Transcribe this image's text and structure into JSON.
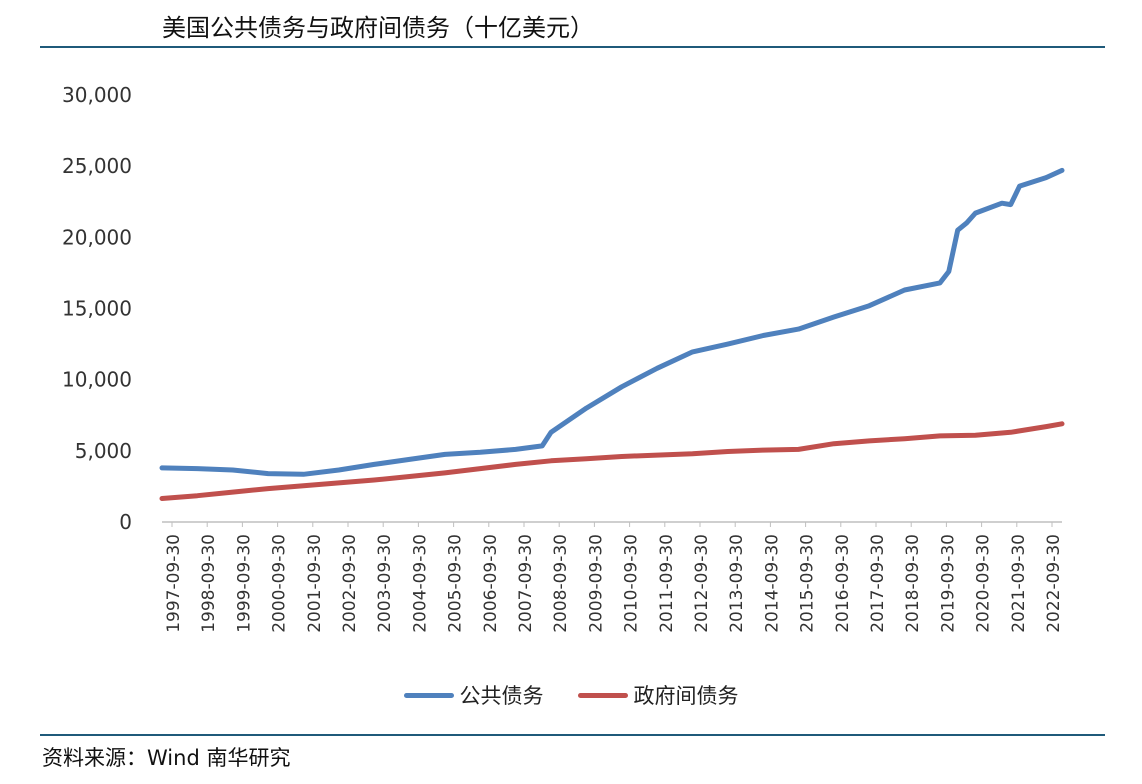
{
  "header": {
    "title": "美国公共债务与政府间债务（十亿美元）"
  },
  "footer": {
    "source": "资料来源：Wind 南华研究"
  },
  "chart_data": {
    "type": "line",
    "title": "美国公共债务与政府间债务（十亿美元）",
    "xlabel": "",
    "ylabel": "",
    "ylim": [
      0,
      30000
    ],
    "yticks": [
      "0",
      "5,000",
      "10,000",
      "15,000",
      "20,000",
      "25,000",
      "30,000"
    ],
    "xticks": [
      "1997-09-30",
      "1998-09-30",
      "1999-09-30",
      "2000-09-30",
      "2001-09-30",
      "2002-09-30",
      "2003-09-30",
      "2004-09-30",
      "2005-09-30",
      "2006-09-30",
      "2007-09-30",
      "2008-09-30",
      "2009-09-30",
      "2010-09-30",
      "2011-09-30",
      "2012-09-30",
      "2013-09-30",
      "2014-09-30",
      "2015-09-30",
      "2016-09-30",
      "2017-09-30",
      "2018-09-30",
      "2019-09-30",
      "2020-09-30",
      "2021-09-30",
      "2022-09-30"
    ],
    "xlim": [
      1997.75,
      2023.2
    ],
    "legend_position": "bottom",
    "grid": false,
    "series": [
      {
        "name": "公共债务",
        "color": "#4f81bd",
        "x": [
          1997.75,
          1998.75,
          1999.75,
          2000.75,
          2001.75,
          2002.75,
          2003.75,
          2004.75,
          2005.75,
          2006.75,
          2007.75,
          2008.5,
          2008.75,
          2009.75,
          2010.75,
          2011.75,
          2012.75,
          2013.75,
          2014.75,
          2015.75,
          2016.75,
          2017.75,
          2018.75,
          2019.75,
          2020.0,
          2020.25,
          2020.5,
          2020.75,
          2021.5,
          2021.75,
          2022.0,
          2022.75,
          2023.2
        ],
        "values": [
          3800,
          3750,
          3650,
          3400,
          3350,
          3650,
          4050,
          4400,
          4750,
          4900,
          5100,
          5350,
          6300,
          8000,
          9500,
          10800,
          11950,
          12500,
          13100,
          13550,
          14400,
          15200,
          16300,
          16800,
          17600,
          20500,
          21000,
          21700,
          22400,
          22300,
          23600,
          24200,
          24700
        ]
      },
      {
        "name": "政府间债务",
        "color": "#c0504d",
        "x": [
          1997.75,
          1998.75,
          1999.75,
          2000.75,
          2001.75,
          2002.75,
          2003.75,
          2004.75,
          2005.75,
          2006.75,
          2007.75,
          2008.75,
          2009.75,
          2010.75,
          2011.75,
          2012.75,
          2013.75,
          2014.75,
          2015.75,
          2016.75,
          2017.75,
          2018.75,
          2019.75,
          2020.75,
          2021.75,
          2022.75,
          2023.2
        ],
        "values": [
          1650,
          1850,
          2100,
          2350,
          2550,
          2750,
          2950,
          3200,
          3450,
          3750,
          4050,
          4300,
          4450,
          4600,
          4700,
          4800,
          4950,
          5050,
          5100,
          5500,
          5700,
          5850,
          6050,
          6100,
          6300,
          6700,
          6900
        ]
      }
    ]
  }
}
